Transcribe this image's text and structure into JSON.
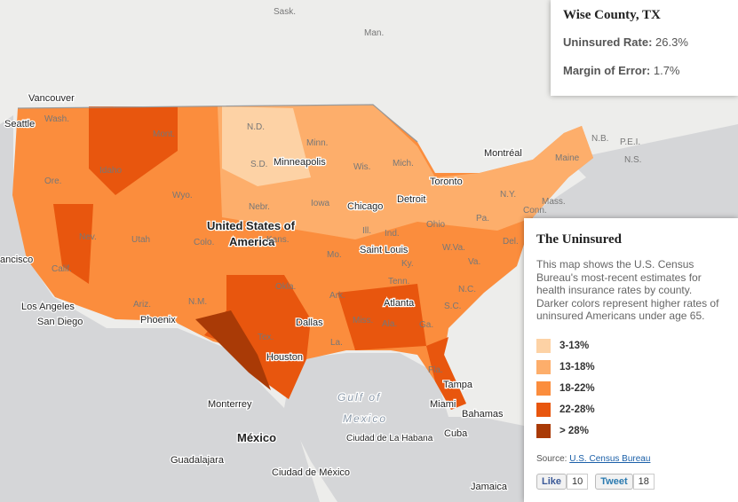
{
  "info_box": {
    "title": "Wise County, TX",
    "rows": [
      {
        "label": "Uninsured Rate:",
        "value": "26.3%"
      },
      {
        "label": "Margin of Error:",
        "value": "1.7%"
      }
    ]
  },
  "panel": {
    "title": "The Uninsured",
    "description": "This map shows the U.S. Census Bureau's most-recent estimates for health insurance rates by county. Darker colors represent higher rates of uninsured Americans under age 65.",
    "legend": [
      {
        "label": "3-13%",
        "color": "#fdd2a5"
      },
      {
        "label": "13-18%",
        "color": "#fdae6b"
      },
      {
        "label": "18-22%",
        "color": "#fb8d3d"
      },
      {
        "label": "22-28%",
        "color": "#e8560e"
      },
      {
        "label": "> 28%",
        "color": "#a93a06"
      }
    ],
    "source_label": "Source:",
    "source_link": "U.S. Census Bureau",
    "like": {
      "label": "Like",
      "count": 10
    },
    "tweet": {
      "label": "Tweet",
      "count": 18
    }
  },
  "map": {
    "labels": [
      "Sask.",
      "Man.",
      "Vancouver",
      "Seattle",
      "Wash.",
      "Mont.",
      "N.D.",
      "Minn.",
      "Idaho",
      "Ore.",
      "Wyo.",
      "S.D.",
      "Minneapolis",
      "Wis.",
      "Mich.",
      "Toronto",
      "Montréal",
      "N.B.",
      "P.E.I.",
      "N.S.",
      "Maine",
      "N.Y.",
      "Mass.",
      "Conn.",
      "Nebr.",
      "Iowa",
      "Chicago",
      "Detroit",
      "Pa.",
      "United States of",
      "America",
      "Nev.",
      "Utah",
      "Colo.",
      "Kans.",
      "Ill.",
      "Ind.",
      "Ohio",
      "Saint Louis",
      "Mo.",
      "Ky.",
      "W.Va.",
      "Va.",
      "Del.",
      "ancisco",
      "Calif.",
      "Ariz.",
      "N.M.",
      "Okla.",
      "Ark.",
      "Tenn.",
      "N.C.",
      "S.C.",
      "Los Angeles",
      "San Diego",
      "Phoenix",
      "Dallas",
      "Atlanta",
      "Ala.",
      "Miss.",
      "Ga.",
      "La.",
      "Tex.",
      "Houston",
      "Fla.",
      "Tampa",
      "Miami",
      "Gulf of",
      "Mexico",
      "Bahamas",
      "Cuba",
      "Ciudad de La Habana",
      "Monterrey",
      "México",
      "Guadalajara",
      "Ciudad de México",
      "Jamaica"
    ]
  }
}
